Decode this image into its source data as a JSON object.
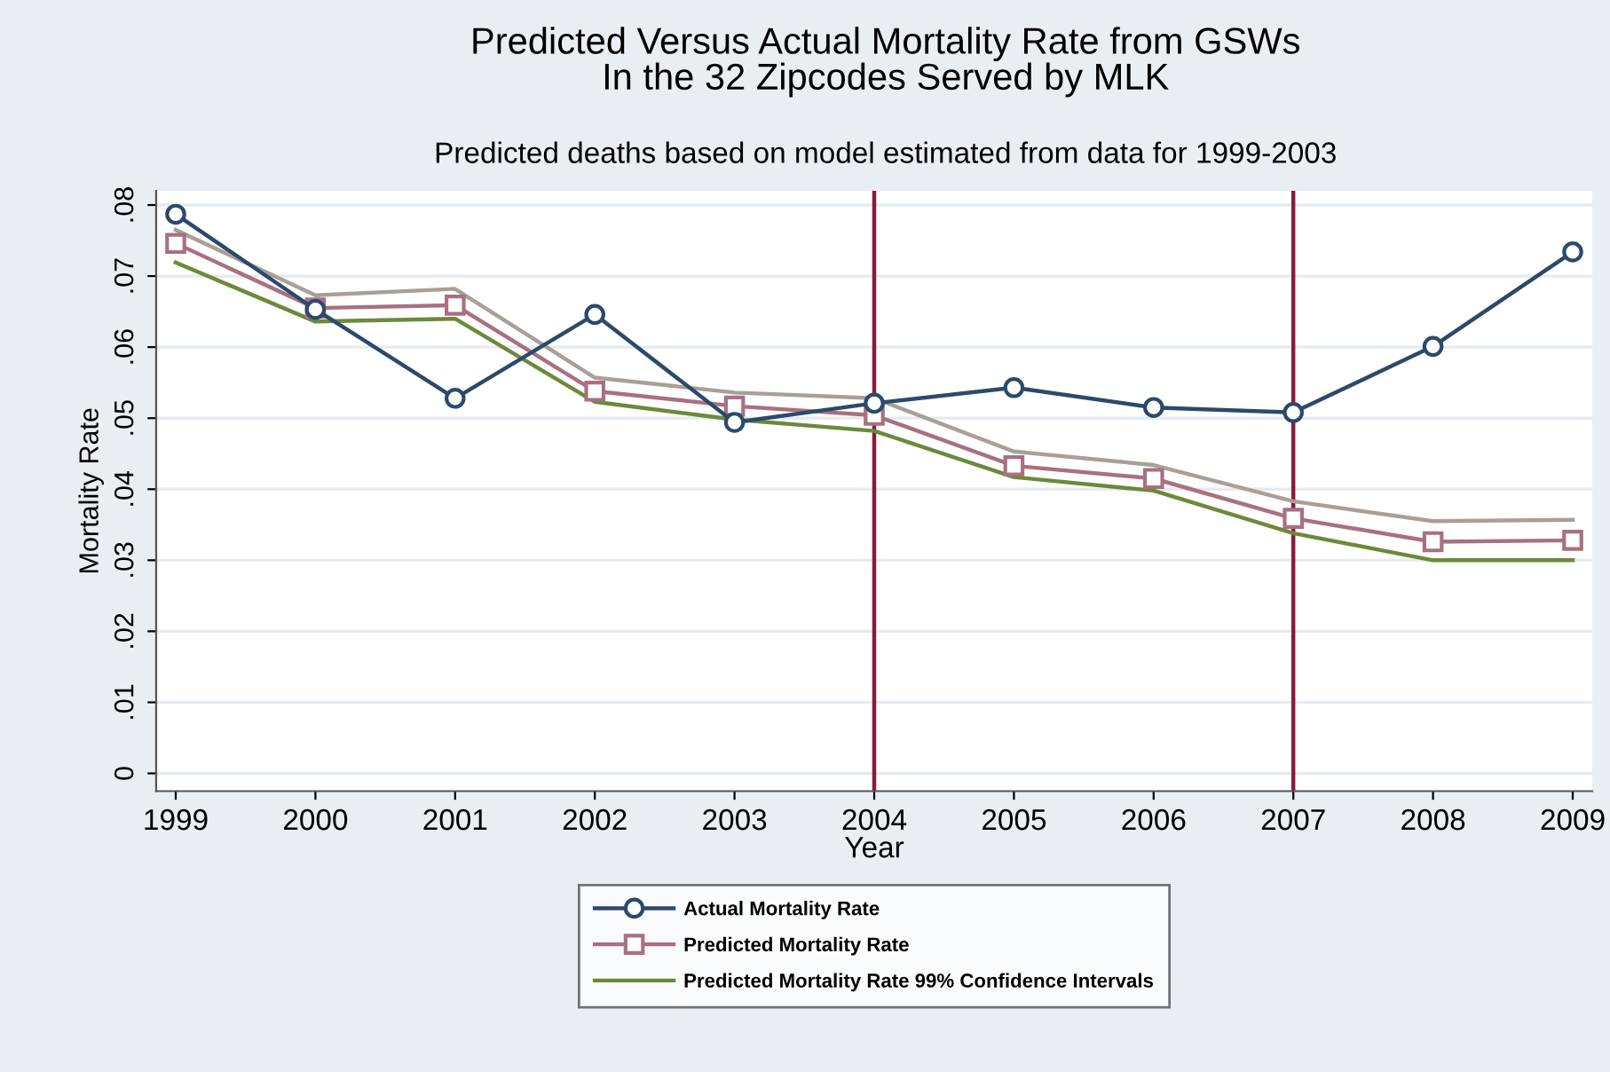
{
  "chart_data": {
    "type": "line",
    "title": "Predicted Versus Actual Mortality Rate from GSWs\nIn the 32 Zipcodes Served by MLK",
    "subtitle": "Predicted deaths based on model estimated from data for 1999-2003",
    "xlabel": "Year",
    "ylabel": "Mortality Rate",
    "x": [
      1999,
      2000,
      2001,
      2002,
      2003,
      2004,
      2005,
      2006,
      2007,
      2008,
      2009
    ],
    "series": [
      {
        "name": "Actual Mortality Rate",
        "color": "#2b4a6b",
        "marker": "circle",
        "values": [
          0.0787,
          0.0653,
          0.0528,
          0.0646,
          0.0494,
          0.0521,
          0.0543,
          0.0515,
          0.0508,
          0.0601,
          0.0734
        ]
      },
      {
        "name": "Predicted Mortality Rate",
        "color": "#a87080",
        "marker": "square",
        "values": [
          0.0746,
          0.0655,
          0.0659,
          0.0538,
          0.0517,
          0.0504,
          0.0433,
          0.0415,
          0.0359,
          0.0326,
          0.0328
        ]
      },
      {
        "color": "#a8a098",
        "marker": "none",
        "values": [
          0.0765,
          0.0673,
          0.0682,
          0.0557,
          0.0536,
          0.0528,
          0.0453,
          0.0434,
          0.0383,
          0.0355,
          0.0357
        ]
      },
      {
        "name": "Predicted Mortality Rate 99% Confidence Intervals",
        "color": "#6b8a3a",
        "marker": "none",
        "values": [
          0.0719,
          0.0636,
          0.064,
          0.0523,
          0.0498,
          0.0482,
          0.0417,
          0.0398,
          0.0338,
          0.03,
          0.03
        ]
      }
    ],
    "ref_lines": [
      {
        "axis": "x",
        "value": 2004,
        "color": "#8b1a3a"
      },
      {
        "axis": "x",
        "value": 2007,
        "color": "#8b1a3a"
      }
    ],
    "xlim": [
      1998.86,
      2009.14
    ],
    "ylim": [
      -0.0025,
      0.082
    ],
    "xticks": [
      1999,
      2000,
      2001,
      2002,
      2003,
      2004,
      2005,
      2006,
      2007,
      2008,
      2009
    ],
    "yticks": [
      0,
      {
        "value": 0.01,
        "label": ".01"
      },
      {
        "value": 0.02,
        "label": ".02"
      },
      {
        "value": 0.03,
        "label": ".03"
      },
      {
        "value": 0.04,
        "label": ".04"
      },
      {
        "value": 0.05,
        "label": ".05"
      },
      {
        "value": 0.06,
        "label": ".06"
      },
      {
        "value": 0.07,
        "label": ".07"
      },
      {
        "value": 0.08,
        "label": ".08"
      }
    ],
    "grid": "y",
    "legend": "bottom"
  }
}
